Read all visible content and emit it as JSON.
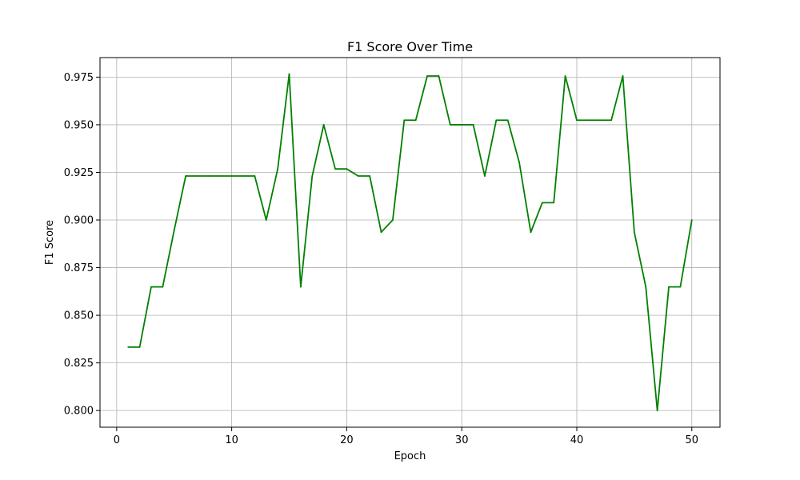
{
  "chart_data": {
    "type": "line",
    "title": "F1 Score Over Time",
    "xlabel": "Epoch",
    "ylabel": "F1 Score",
    "xlim": [
      -1.45,
      52.45
    ],
    "ylim": [
      0.79125,
      0.98525
    ],
    "xticks": [
      0,
      10,
      20,
      30,
      40,
      50
    ],
    "yticks": [
      0.8,
      0.825,
      0.85,
      0.875,
      0.9,
      0.925,
      0.95,
      0.975
    ],
    "ytick_labels": [
      "0.800",
      "0.825",
      "0.850",
      "0.875",
      "0.900",
      "0.925",
      "0.950",
      "0.975"
    ],
    "grid": true,
    "line_color": "#008000",
    "series": [
      {
        "x": [
          1,
          2,
          3,
          4,
          5,
          6,
          7,
          8,
          9,
          10,
          11,
          12,
          13,
          14,
          15,
          16,
          17,
          18,
          19,
          20,
          21,
          22,
          23,
          24,
          25,
          26,
          27,
          28,
          29,
          30,
          31,
          32,
          33,
          34,
          35,
          36,
          37,
          38,
          39,
          40,
          41,
          42,
          43,
          44,
          45,
          46,
          47,
          48,
          49,
          50
        ],
        "values": [
          0.8333,
          0.8333,
          0.8649,
          0.8649,
          0.8947,
          0.9231,
          0.9231,
          0.9231,
          0.9231,
          0.9231,
          0.9231,
          0.9231,
          0.9,
          0.9268,
          0.9767,
          0.8649,
          0.9231,
          0.95,
          0.9268,
          0.9268,
          0.9231,
          0.9231,
          0.8936,
          0.9,
          0.9524,
          0.9524,
          0.9756,
          0.9756,
          0.95,
          0.95,
          0.95,
          0.9231,
          0.9524,
          0.9524,
          0.9302,
          0.8936,
          0.9091,
          0.9091,
          0.9756,
          0.9524,
          0.9524,
          0.9524,
          0.9524,
          0.9756,
          0.8936,
          0.8649,
          0.8,
          0.8649,
          0.8649,
          0.9
        ]
      }
    ]
  }
}
